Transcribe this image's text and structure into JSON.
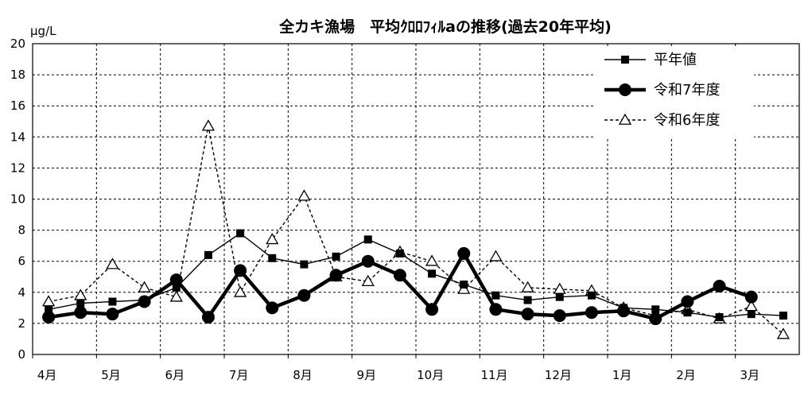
{
  "chart_data": {
    "type": "line",
    "title": "全カキ漁場　平均ｸﾛﾛﾌｨﾙaの推移(過去20年平均)",
    "ylabel": "μg/L",
    "ylim": [
      0,
      20
    ],
    "yticks": [
      0,
      2,
      4,
      6,
      8,
      10,
      12,
      14,
      16,
      18,
      20
    ],
    "month_labels": [
      "4月",
      "5月",
      "6月",
      "7月",
      "8月",
      "9月",
      "10月",
      "11月",
      "12月",
      "1月",
      "2月",
      "3月"
    ],
    "grid": "dashed",
    "legend_position": "top-right",
    "series": [
      {
        "name": "平年値",
        "style": "thin-solid-square",
        "color": "#000000",
        "values": [
          2.9,
          3.3,
          3.4,
          3.5,
          4.3,
          6.4,
          7.8,
          6.2,
          5.8,
          6.3,
          7.4,
          6.5,
          5.2,
          4.5,
          3.8,
          3.5,
          3.7,
          3.8,
          3.0,
          2.9,
          2.7,
          2.4,
          2.6,
          2.5
        ]
      },
      {
        "name": "令和7年度",
        "style": "thick-solid-circle",
        "color": "#000000",
        "values": [
          2.4,
          2.7,
          2.6,
          3.4,
          4.8,
          2.4,
          5.4,
          3.0,
          3.8,
          5.1,
          6.0,
          5.1,
          2.9,
          6.5,
          2.9,
          2.6,
          2.5,
          2.7,
          2.8,
          2.3,
          3.4,
          4.4,
          3.7,
          null
        ]
      },
      {
        "name": "令和6年度",
        "style": "dashed-open-triangle",
        "color": "#000000",
        "values": [
          3.4,
          3.8,
          5.8,
          4.3,
          3.7,
          14.7,
          4.0,
          7.4,
          10.2,
          5.0,
          4.7,
          6.6,
          6.0,
          4.2,
          6.3,
          4.3,
          4.2,
          4.1,
          3.0,
          2.5,
          2.9,
          2.3,
          3.1,
          1.3
        ]
      }
    ]
  }
}
